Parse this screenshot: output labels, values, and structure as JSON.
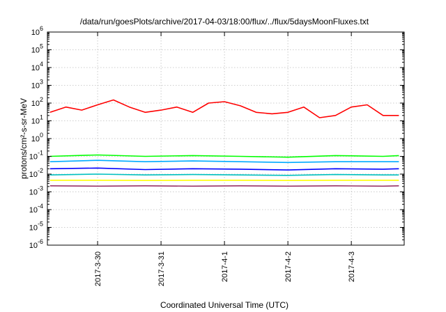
{
  "chart_data": {
    "type": "line",
    "title": "/data/run/goesPlots/archive/2017-04-03/18:00/flux/../flux/5daysMoonFluxes.txt",
    "xlabel": "Coordinated Universal Time (UTC)",
    "ylabel": "protons/cm²-s-sr-MeV",
    "y_scale": "log",
    "ylim_exponent": [
      -6,
      6
    ],
    "xlim": [
      "2017-03-29 05:00",
      "2017-04-03 20:00"
    ],
    "x_ticks": [
      "2017-3-30",
      "2017-3-31",
      "2017-4-1",
      "2017-4-2",
      "2017-4-3"
    ],
    "y_ticks": [
      "10^-6",
      "10^-5",
      "10^-4",
      "10^-3",
      "10^-2",
      "10^-1",
      "10^0",
      "10^1",
      "10^2",
      "10^3",
      "10^4",
      "10^5",
      "10^6"
    ],
    "grid": true,
    "legend": "none",
    "series": [
      {
        "color": "#ff0000",
        "x": [
          "2017-03-29 06:00",
          "2017-03-29 12:00",
          "2017-03-29 18:00",
          "2017-03-30 00:00",
          "2017-03-30 06:00",
          "2017-03-30 12:00",
          "2017-03-30 18:00",
          "2017-03-31 00:00",
          "2017-03-31 06:00",
          "2017-03-31 12:00",
          "2017-03-31 18:00",
          "2017-04-01 00:00",
          "2017-04-01 06:00",
          "2017-04-01 12:00",
          "2017-04-01 18:00",
          "2017-04-02 00:00",
          "2017-04-02 06:00",
          "2017-04-02 12:00",
          "2017-04-02 18:00",
          "2017-04-03 00:00",
          "2017-04-03 06:00",
          "2017-04-03 12:00",
          "2017-04-03 18:00"
        ],
        "values": [
          30,
          60,
          40,
          80,
          150,
          60,
          30,
          40,
          60,
          30,
          100,
          120,
          70,
          30,
          25,
          30,
          60,
          15,
          20,
          60,
          80,
          20,
          20
        ]
      },
      {
        "color": "#00ff00",
        "x": [
          "2017-03-29 06:00",
          "2017-03-30 00:00",
          "2017-03-30 18:00",
          "2017-03-31 12:00",
          "2017-04-01 06:00",
          "2017-04-02 00:00",
          "2017-04-02 18:00",
          "2017-04-03 12:00",
          "2017-04-03 18:00"
        ],
        "values": [
          0.1,
          0.12,
          0.1,
          0.11,
          0.1,
          0.09,
          0.11,
          0.1,
          0.11
        ]
      },
      {
        "color": "#00aaff",
        "x": [
          "2017-03-29 06:00",
          "2017-03-30 00:00",
          "2017-03-30 18:00",
          "2017-03-31 12:00",
          "2017-04-01 06:00",
          "2017-04-02 00:00",
          "2017-04-02 18:00",
          "2017-04-03 12:00",
          "2017-04-03 18:00"
        ],
        "values": [
          0.05,
          0.06,
          0.05,
          0.055,
          0.05,
          0.045,
          0.05,
          0.05,
          0.05
        ]
      },
      {
        "color": "#0000ff",
        "x": [
          "2017-03-29 06:00",
          "2017-03-30 00:00",
          "2017-03-30 18:00",
          "2017-03-31 12:00",
          "2017-04-01 06:00",
          "2017-04-02 00:00",
          "2017-04-02 18:00",
          "2017-04-03 12:00",
          "2017-04-03 18:00"
        ],
        "values": [
          0.02,
          0.022,
          0.018,
          0.02,
          0.019,
          0.017,
          0.02,
          0.019,
          0.02
        ]
      },
      {
        "color": "#00c0c0",
        "x": [
          "2017-03-29 06:00",
          "2017-03-30 00:00",
          "2017-03-30 18:00",
          "2017-03-31 12:00",
          "2017-04-01 06:00",
          "2017-04-02 00:00",
          "2017-04-02 18:00",
          "2017-04-03 12:00",
          "2017-04-03 18:00"
        ],
        "values": [
          0.009,
          0.01,
          0.009,
          0.0095,
          0.009,
          0.0085,
          0.0095,
          0.009,
          0.009
        ]
      },
      {
        "color": "#ffff00",
        "x": [
          "2017-03-29 06:00",
          "2017-03-30 00:00",
          "2017-03-30 18:00",
          "2017-03-31 12:00",
          "2017-04-01 06:00",
          "2017-04-02 00:00",
          "2017-04-02 18:00",
          "2017-04-03 12:00",
          "2017-04-03 18:00"
        ],
        "values": [
          0.0045,
          0.0045,
          0.0044,
          0.0045,
          0.0045,
          0.0044,
          0.0045,
          0.0045,
          0.0045
        ]
      },
      {
        "color": "#993366",
        "x": [
          "2017-03-29 06:00",
          "2017-03-30 00:00",
          "2017-03-30 18:00",
          "2017-03-31 12:00",
          "2017-04-01 06:00",
          "2017-04-02 00:00",
          "2017-04-02 18:00",
          "2017-04-03 12:00",
          "2017-04-03 18:00"
        ],
        "values": [
          0.0022,
          0.0021,
          0.0022,
          0.0021,
          0.0022,
          0.0021,
          0.0022,
          0.0021,
          0.0022
        ]
      }
    ]
  }
}
